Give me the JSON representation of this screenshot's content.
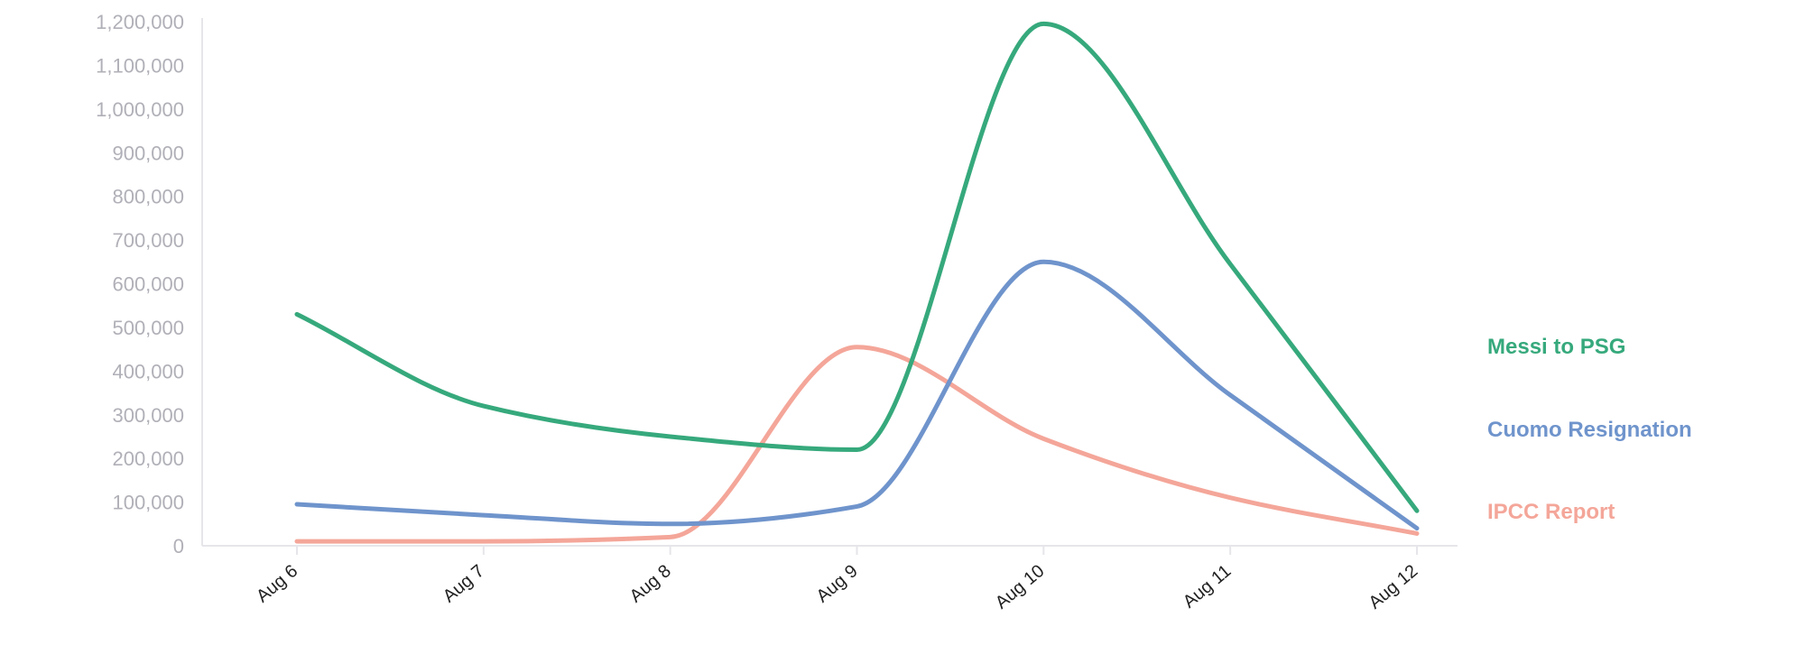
{
  "chart_data": {
    "type": "line",
    "title": "",
    "xlabel": "",
    "ylabel": "",
    "categories": [
      "Aug 6",
      "Aug 7",
      "Aug 8",
      "Aug 9",
      "Aug 10",
      "Aug 11",
      "Aug 12"
    ],
    "yticks": [
      "0",
      "100,000",
      "200,000",
      "300,000",
      "400,000",
      "500,000",
      "600,000",
      "700,000",
      "800,000",
      "900,000",
      "1,000,000",
      "1,100,000",
      "1,200,000"
    ],
    "ylim": [
      0,
      1200000
    ],
    "grid": false,
    "legend": "right",
    "series": [
      {
        "name": "Messi to PSG",
        "color": "#36a97c",
        "values": [
          530000,
          320000,
          250000,
          220000,
          1195000,
          645000,
          80000
        ]
      },
      {
        "name": "Cuomo Resignation",
        "color": "#6f94cc",
        "values": [
          95000,
          70000,
          50000,
          90000,
          650000,
          345000,
          40000
        ]
      },
      {
        "name": "IPCC Report",
        "color": "#f4a699",
        "values": [
          10000,
          10000,
          20000,
          455000,
          245000,
          110000,
          28000
        ]
      }
    ]
  }
}
